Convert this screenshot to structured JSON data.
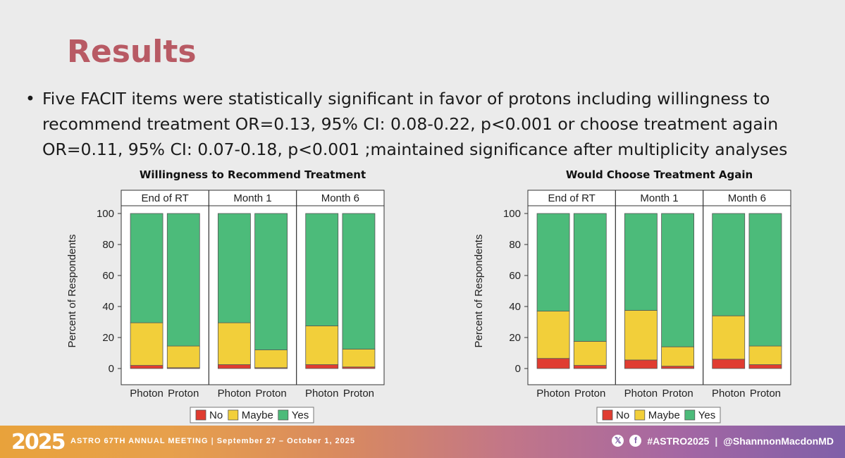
{
  "slide": {
    "title": "Results",
    "bullet": "Five FACIT items were statistically significant in favor of protons including willingness to recommend treatment OR=0.13, 95% CI: 0.08-0.22, p<0.001 or choose treatment again OR=0.11, 95% CI: 0.07-0.18, p<0.001 ;maintained significance after multiplicity analyses"
  },
  "footer": {
    "logo": "2025",
    "meeting": "ASTRO 67TH ANNUAL MEETING",
    "divider": "|",
    "dates": "September 27 – October 1, 2025",
    "x_icon": "x-icon",
    "facebook_icon": "facebook-icon",
    "hashtag": "#ASTRO2025",
    "separator": "|",
    "handle": "@ShannnonMacdonMD"
  },
  "chart_data": [
    {
      "type": "bar",
      "stacked": true,
      "title": "Willingness to Recommend Treatment",
      "ylabel": "Percent of Respondents",
      "ylim": [
        0,
        100
      ],
      "yticks": [
        "0",
        "20",
        "40",
        "60",
        "80",
        "100"
      ],
      "panels": [
        "End of RT",
        "Month 1",
        "Month 6"
      ],
      "categories": [
        "Photon",
        "Proton"
      ],
      "series": [
        {
          "name": "No",
          "color": "#e03c31",
          "values": [
            [
              2,
              0.5
            ],
            [
              2.5,
              0.5
            ],
            [
              2.5,
              1
            ]
          ]
        },
        {
          "name": "Maybe",
          "color": "#f2cf3a",
          "values": [
            [
              27.5,
              14
            ],
            [
              27,
              11.5
            ],
            [
              25,
              11.5
            ]
          ]
        },
        {
          "name": "Yes",
          "color": "#4cbb7a",
          "values": [
            [
              70.5,
              85.5
            ],
            [
              70.5,
              88
            ],
            [
              72.5,
              87.5
            ]
          ]
        }
      ],
      "legend": [
        "No",
        "Maybe",
        "Yes"
      ]
    },
    {
      "type": "bar",
      "stacked": true,
      "title": "Would Choose Treatment Again",
      "ylabel": "Percent of Respondents",
      "ylim": [
        0,
        100
      ],
      "yticks": [
        "0",
        "20",
        "40",
        "60",
        "80",
        "100"
      ],
      "panels": [
        "End of RT",
        "Month 1",
        "Month 6"
      ],
      "categories": [
        "Photon",
        "Proton"
      ],
      "series": [
        {
          "name": "No",
          "color": "#e03c31",
          "values": [
            [
              6.5,
              2
            ],
            [
              5.5,
              1.5
            ],
            [
              6,
              2.5
            ]
          ]
        },
        {
          "name": "Maybe",
          "color": "#f2cf3a",
          "values": [
            [
              30.5,
              15.5
            ],
            [
              32,
              12.5
            ],
            [
              28,
              12
            ]
          ]
        },
        {
          "name": "Yes",
          "color": "#4cbb7a",
          "values": [
            [
              63,
              82.5
            ],
            [
              62.5,
              86
            ],
            [
              66,
              85.5
            ]
          ]
        }
      ],
      "legend": [
        "No",
        "Maybe",
        "Yes"
      ]
    }
  ]
}
